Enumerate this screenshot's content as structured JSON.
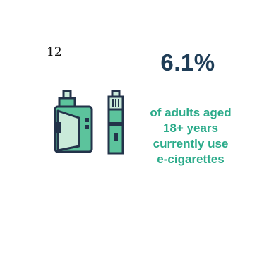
{
  "page_number": "12",
  "stat": {
    "value": "6.1%",
    "description_lines": [
      "of adults aged",
      "18+ years",
      "currently use",
      "e-cigarettes"
    ]
  },
  "icon": {
    "name": "e-cigarette-icon"
  },
  "colors": {
    "accent": "#2bab8a",
    "heading": "#1f3d57",
    "outline": "#23334a",
    "fill_light": "#c9ead9",
    "fill_mid": "#5cc39c",
    "border": "#5b8fd6"
  }
}
